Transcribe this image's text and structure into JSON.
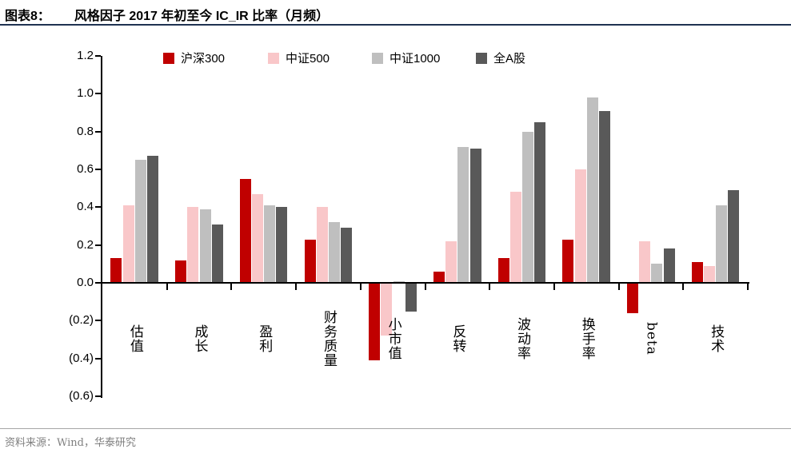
{
  "header": {
    "prefix": "图表8：",
    "title": "风格因子 2017 年初至今 IC_IR 比率（月频）"
  },
  "footer": {
    "source": "资料来源：Wind，华泰研究"
  },
  "colors": {
    "hs300": "#C00000",
    "zz500": "#F9C7C9",
    "zz1000": "#BFBFBF",
    "all_a_share": "#595959",
    "axis": "#000000",
    "title_rule": "#1F3251",
    "footer_rule": "#A6A6A6",
    "footer_text": "#808080"
  },
  "chart_data": {
    "type": "bar",
    "title": "风格因子 2017 年初至今 IC_IR 比率（月频）",
    "categories": [
      "估值",
      "成长",
      "盈利",
      "财务质量",
      "小市值",
      "反转",
      "波动率",
      "换手率",
      "beta",
      "技术"
    ],
    "series": [
      {
        "name": "沪深300",
        "color": "#C00000",
        "values": [
          0.13,
          0.12,
          0.55,
          0.23,
          -0.41,
          0.06,
          0.13,
          0.23,
          -0.16,
          0.11
        ]
      },
      {
        "name": "中证500",
        "color": "#F9C7C9",
        "values": [
          0.41,
          0.4,
          0.47,
          0.4,
          -0.28,
          0.22,
          0.48,
          0.6,
          0.22,
          0.09
        ]
      },
      {
        "name": "中证1000",
        "color": "#BFBFBF",
        "values": [
          0.65,
          0.39,
          0.41,
          0.32,
          0.01,
          0.72,
          0.8,
          0.98,
          0.1,
          0.41
        ]
      },
      {
        "name": "全A股",
        "color": "#595959",
        "values": [
          0.67,
          0.31,
          0.4,
          0.29,
          -0.15,
          0.71,
          0.85,
          0.91,
          0.18,
          0.49
        ]
      }
    ],
    "ylim": [
      -0.6,
      1.2
    ],
    "ytick_step": 0.2,
    "ytick_labels": [
      "1.2",
      "1.0",
      "0.8",
      "0.6",
      "0.4",
      "0.2",
      "0.0",
      "(0.2)",
      "(0.4)",
      "(0.6)"
    ],
    "grid": false,
    "legend_position": "top"
  }
}
